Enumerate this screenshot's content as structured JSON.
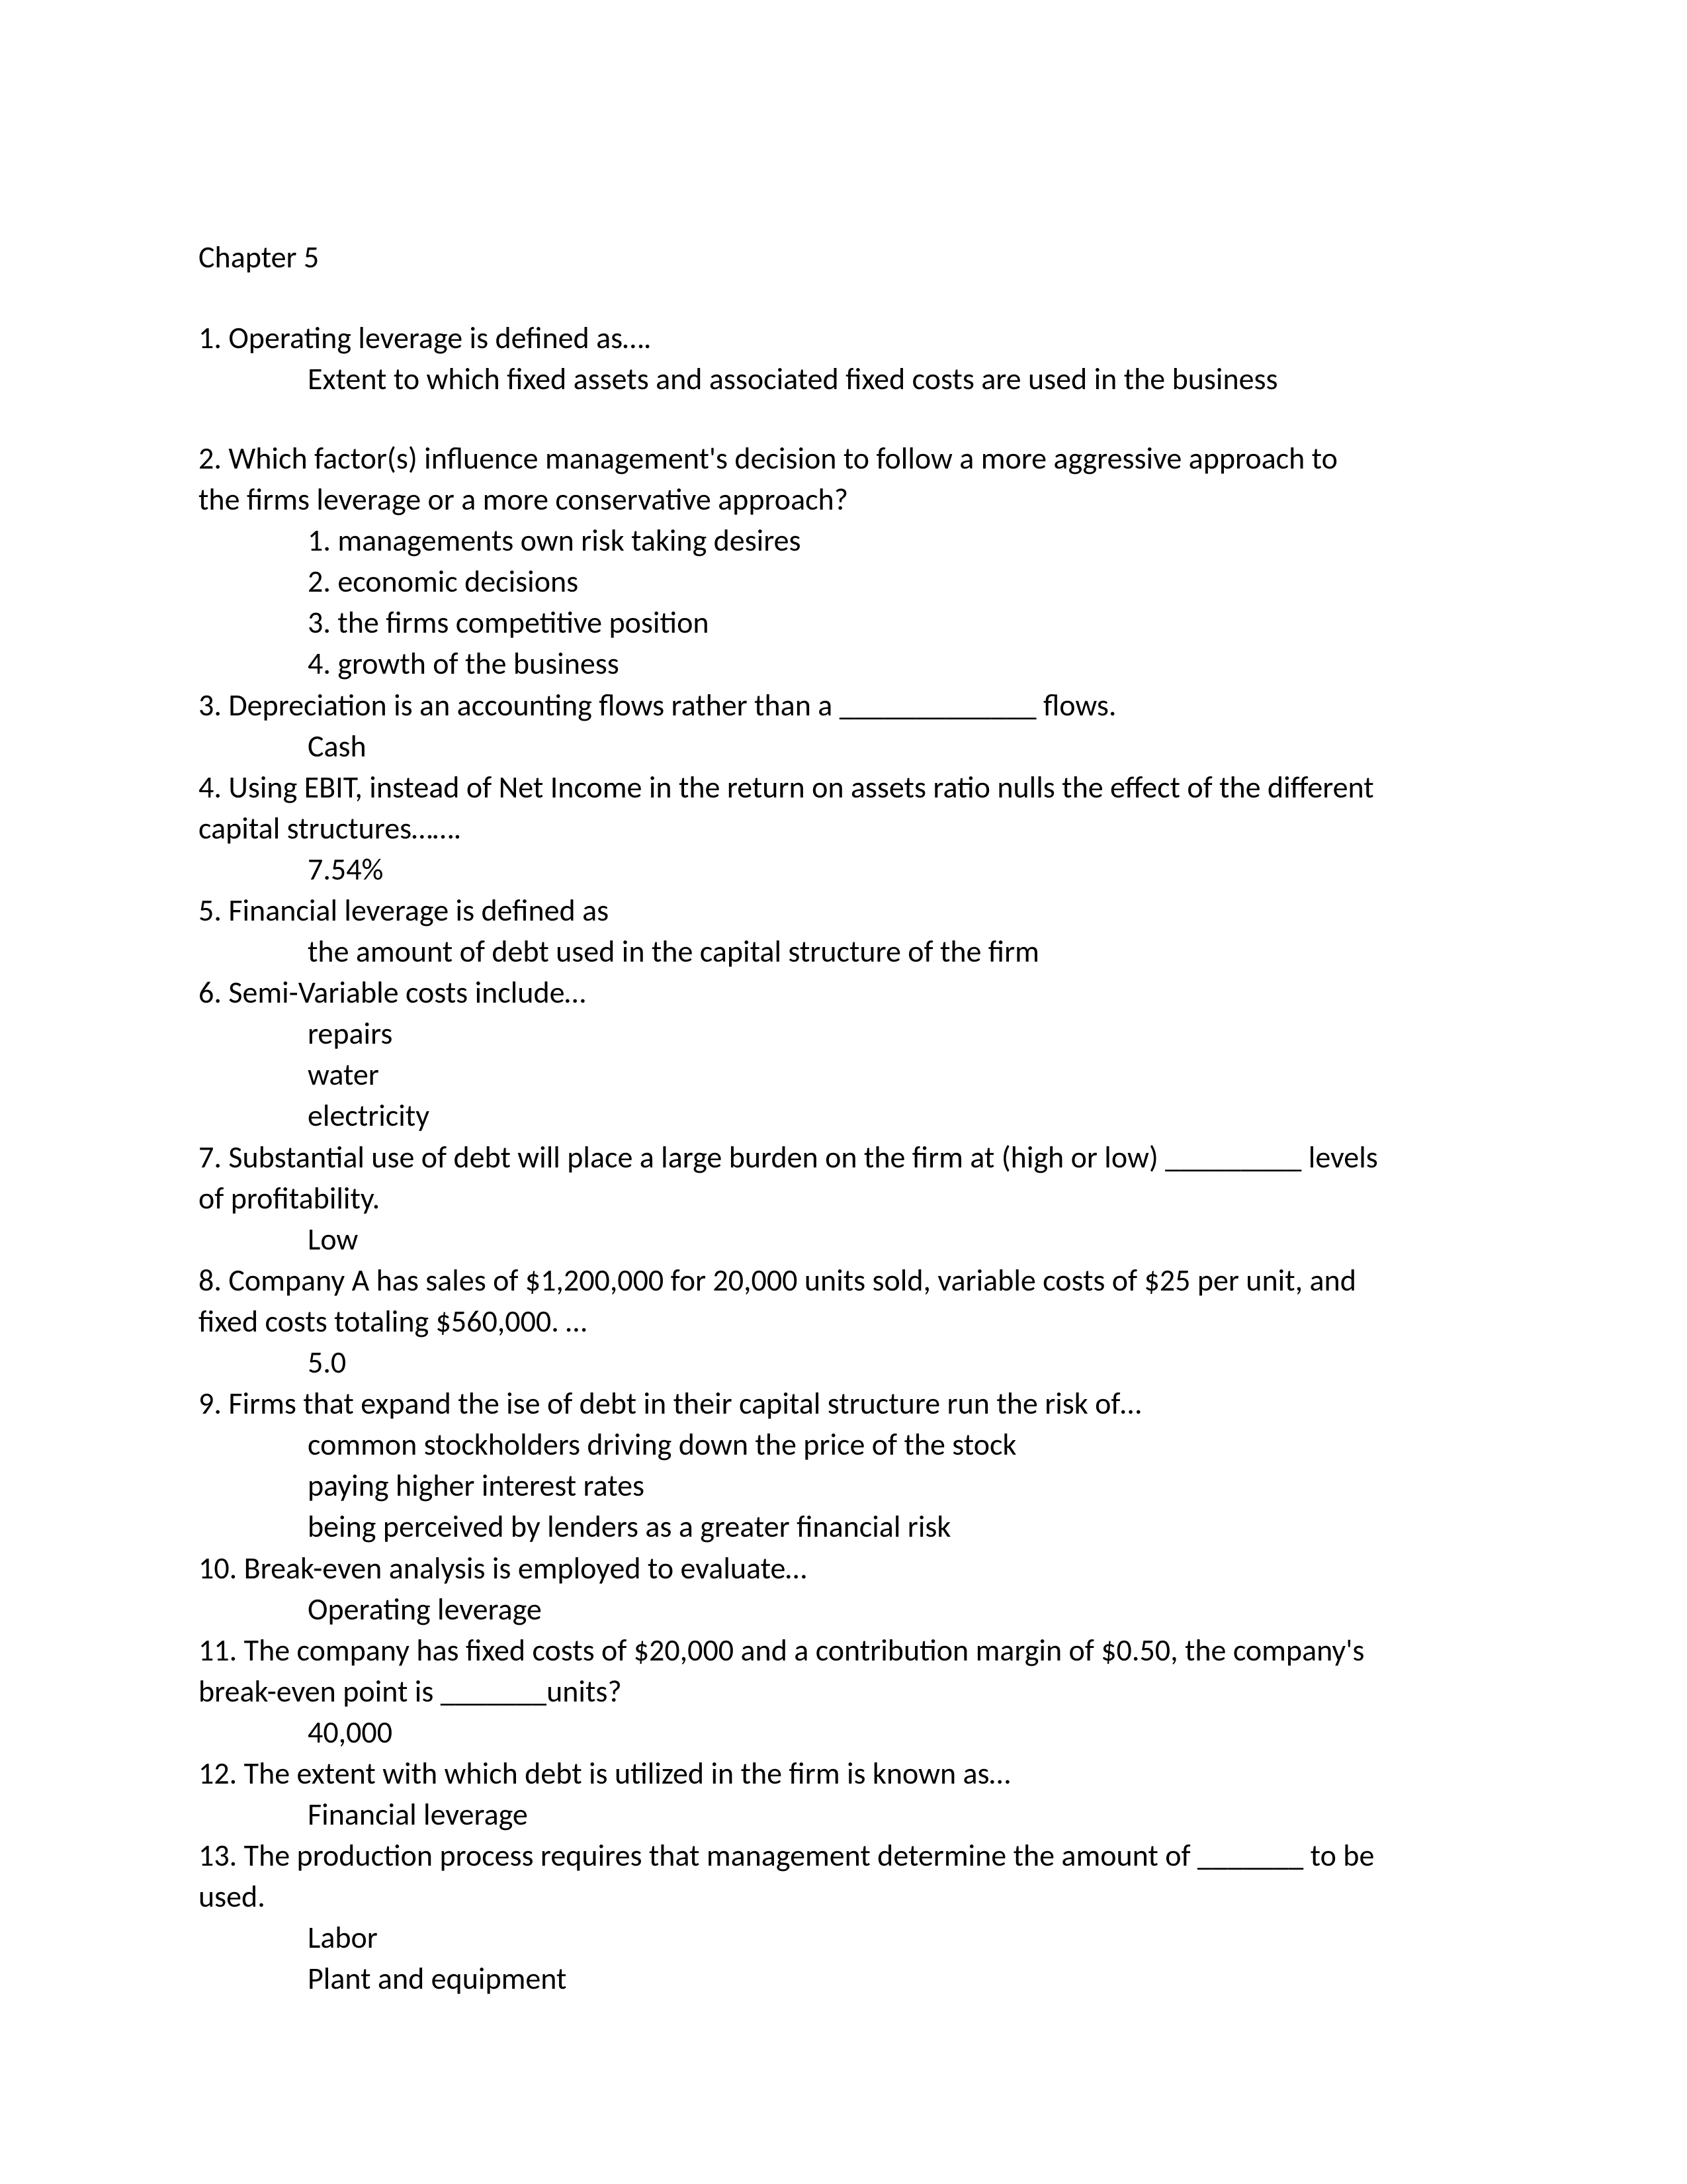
{
  "title": "Chapter 5",
  "font_family": "Calibri",
  "font_size_pt": 12,
  "text_color": "#000000",
  "background_color": "#ffffff",
  "questions": [
    {
      "number": "1",
      "text": "Operating leverage is defined as….",
      "answers": [
        "Extent to which fixed assets and associated fixed costs are used in the business"
      ]
    },
    {
      "number": "2",
      "text_line1": "Which factor(s) influence management's decision to follow a more aggressive approach to",
      "text_line2": "the firms leverage or a more conservative approach?",
      "answers": [
        "1. managements own risk taking desires",
        "2. economic decisions",
        "3. the firms competitive position",
        "4. growth of the business"
      ]
    },
    {
      "number": "3",
      "text": "Depreciation is an accounting flows rather than a _____________ flows.",
      "answers": [
        "Cash"
      ]
    },
    {
      "number": "4",
      "text_line1": "Using EBIT, instead of Net Income in the return on assets ratio nulls the effect of the different",
      "text_line2": "capital structures…….",
      "answers": [
        "7.54%"
      ]
    },
    {
      "number": "5",
      "text": "Financial leverage is defined as",
      "answers": [
        "the amount of debt used in the capital structure of the firm"
      ]
    },
    {
      "number": "6",
      "text": "Semi-Variable costs include…",
      "answers": [
        "repairs",
        "water",
        "electricity"
      ]
    },
    {
      "number": "7",
      "text_line1": "Substantial use of debt will place a large burden on the firm at (high or low) _________ levels",
      "text_line2": "of profitability.",
      "answers": [
        "Low"
      ]
    },
    {
      "number": "8",
      "text_line1": "Company A has sales of $1,200,000 for 20,000 units sold, variable costs of $25 per unit, and",
      "text_line2": "fixed costs totaling $560,000. …",
      "answers": [
        "5.0"
      ]
    },
    {
      "number": "9",
      "text": "Firms that expand the ise of debt in their capital structure run the risk of…",
      "answers": [
        "common stockholders driving down the price of the stock",
        "paying higher interest rates",
        "being perceived by lenders as a greater financial risk"
      ]
    },
    {
      "number": "10",
      "text": "Break-even analysis is employed to evaluate…",
      "answers": [
        "Operating leverage"
      ]
    },
    {
      "number": "11",
      "text_line1": "The company has fixed costs of $20,000 and a contribution margin of $0.50, the company's",
      "text_line2": "break-even point is _______units?",
      "answers": [
        "40,000"
      ]
    },
    {
      "number": "12",
      "text": "The extent with which debt is utilized in the firm is known as…",
      "answers": [
        "Financial leverage"
      ]
    },
    {
      "number": "13",
      "text_line1": "The production process requires that management determine the amount of _______ to be",
      "text_line2": "used.",
      "answers": [
        "Labor",
        "Plant and equipment"
      ]
    }
  ]
}
